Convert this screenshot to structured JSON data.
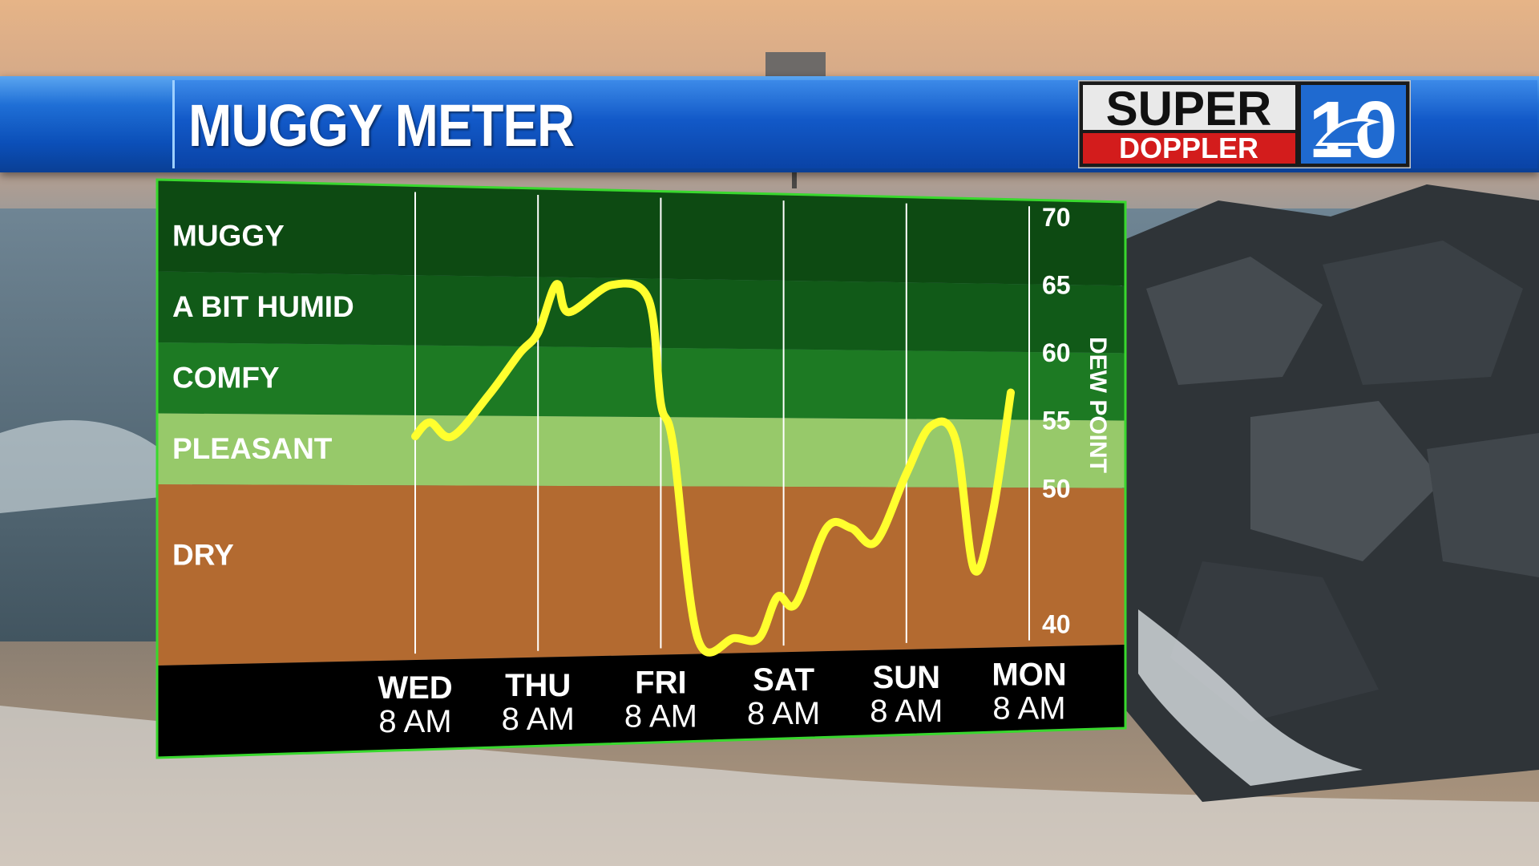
{
  "header": {
    "title": "MUGGY METER",
    "logo": {
      "word1": "SUPER",
      "word2": "DOPPLER",
      "number": "10"
    }
  },
  "colors": {
    "muggy": "#0d4a12",
    "humid": "#115a18",
    "comfy": "#1d7a23",
    "pleasant": "#97c96a",
    "dry": "#b36a30",
    "line": "#ffff2e",
    "frame": "#39d82e",
    "footer": "#000000"
  },
  "chart_data": {
    "type": "line",
    "title": "MUGGY METER",
    "ylabel": "DEW POINT",
    "y_scale": "linear",
    "ylim": [
      40,
      70
    ],
    "y_ticks": [
      "70",
      "65",
      "60",
      "55",
      "50",
      "40"
    ],
    "grid": "vertical lines at each day",
    "bands": [
      {
        "label": "MUGGY",
        "from": 65,
        "to": 70
      },
      {
        "label": "A BIT HUMID",
        "from": 60,
        "to": 65
      },
      {
        "label": "COMFY",
        "from": 55,
        "to": 60
      },
      {
        "label": "PLEASANT",
        "from": 50,
        "to": 55
      },
      {
        "label": "DRY",
        "from": 40,
        "to": 50
      }
    ],
    "categories": [
      {
        "day": "WED",
        "time": "8 AM"
      },
      {
        "day": "THU",
        "time": "8 AM"
      },
      {
        "day": "FRI",
        "time": "8 AM"
      },
      {
        "day": "SAT",
        "time": "8 AM"
      },
      {
        "day": "SUN",
        "time": "8 AM"
      },
      {
        "day": "MON",
        "time": "8 AM"
      }
    ],
    "series": [
      {
        "x": [
          0,
          0.12,
          0.3,
          0.6,
          0.85,
          1.0,
          1.15,
          1.25,
          1.6,
          1.9,
          2.0,
          2.1,
          2.3,
          2.6,
          2.8,
          2.95,
          3.1,
          3.35,
          3.55,
          3.75,
          4.0,
          4.2,
          4.4,
          4.55,
          4.7,
          4.85
        ],
        "y": [
          53.5,
          54.5,
          53.5,
          56.5,
          59.5,
          61,
          64.5,
          62.5,
          64.5,
          63.5,
          56,
          53,
          39,
          39,
          39,
          42,
          41.5,
          47,
          47,
          46,
          51,
          54.5,
          53.5,
          44,
          48,
          57
        ]
      }
    ]
  }
}
